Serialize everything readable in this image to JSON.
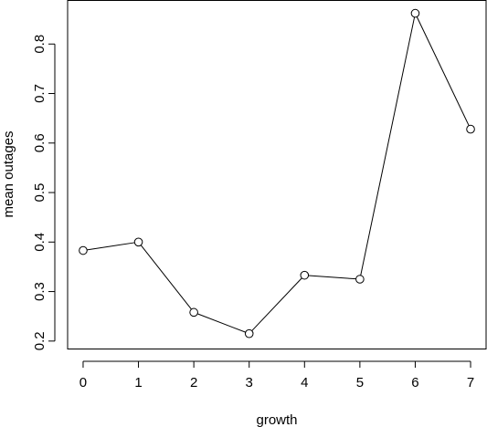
{
  "chart_data": {
    "type": "line",
    "title": "",
    "xlabel": "growth",
    "ylabel": "mean outages",
    "x": [
      0,
      1,
      2,
      3,
      4,
      5,
      6,
      7
    ],
    "series": [
      {
        "values": [
          0.383,
          0.4,
          0.258,
          0.215,
          0.333,
          0.325,
          0.862,
          0.628
        ]
      }
    ],
    "xlim": [
      -0.28,
      7.28
    ],
    "ylim": [
      0.184,
      0.888
    ],
    "xticks": [
      "0",
      "1",
      "2",
      "3",
      "4",
      "5",
      "6",
      "7"
    ],
    "yticks": [
      "0.2",
      "0.3",
      "0.4",
      "0.5",
      "0.6",
      "0.7",
      "0.8"
    ],
    "grid": false,
    "markers": "open-circle",
    "line_color": "#000000"
  }
}
